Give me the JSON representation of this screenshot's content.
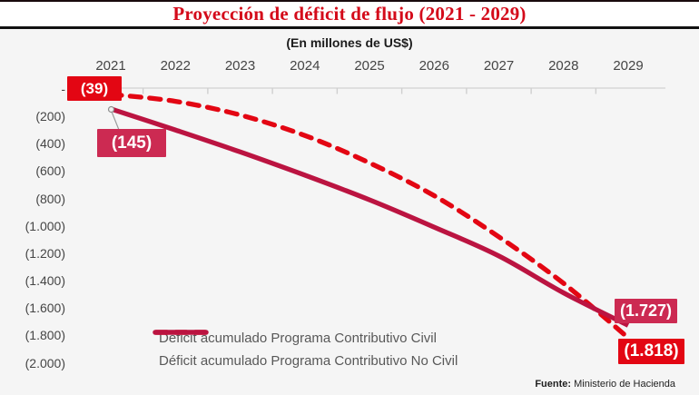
{
  "header": {
    "title": "Proyección de déficit de flujo (2021 - 2029)"
  },
  "subtitle": "(En millones de US$)",
  "source": {
    "prefix": "Fuente:",
    "text": " Ministerio de Hacienda"
  },
  "colors": {
    "title_red": "#d40a1a",
    "red": "#e30613",
    "crimson_line": "#bb1441",
    "crimson_box": "#cc2a52",
    "axis_line": "#d8d8d8",
    "background": "#f5f5f5",
    "title_bar_bg": "#ffffff"
  },
  "chart_data": {
    "type": "line",
    "x": [
      2021,
      2022,
      2023,
      2024,
      2025,
      2026,
      2027,
      2028,
      2029
    ],
    "series": [
      {
        "name": "Déficit acumulado Programa Contributivo Civil",
        "style": "dashed",
        "color": "#e30613",
        "values": [
          -39,
          -90,
          -190,
          -340,
          -540,
          -780,
          -1080,
          -1420,
          -1818
        ],
        "start_label": "(39)",
        "end_label": "(1.818)"
      },
      {
        "name": "Déficit acumulado Programa Contributivo No Civil",
        "style": "solid",
        "color": "#bb1441",
        "values": [
          -145,
          -300,
          -460,
          -630,
          -810,
          -1010,
          -1220,
          -1490,
          -1727
        ],
        "start_label": "(145)",
        "end_label": "(1.727)"
      }
    ],
    "title": "Proyección de déficit de flujo (2021 - 2029)",
    "xlabel": "",
    "ylabel": "(En millones de US$)",
    "ylim": [
      -2000,
      0
    ],
    "yticks": [
      "-",
      "(200)",
      "(400)",
      "(600)",
      "(800)",
      "(1.000)",
      "(1.200)",
      "(1.400)",
      "(1.600)",
      "(1.800)",
      "(2.000)"
    ],
    "grid": false,
    "legend_position": "bottom-center"
  }
}
